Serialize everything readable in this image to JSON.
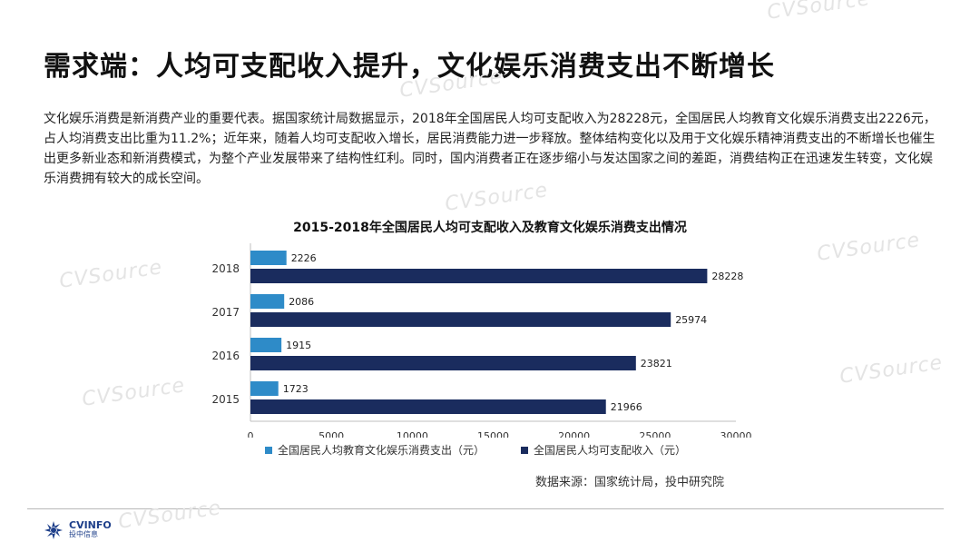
{
  "header": {
    "title": "需求端：人均可支配收入提升，文化娱乐消费支出不断增长"
  },
  "intro": {
    "text": "文化娱乐消费是新消费产业的重要代表。据国家统计局数据显示，2018年全国居民人均可支配收入为28228元，全国居民人均教育文化娱乐消费支出2226元，占人均消费支出比重为11.2%；近年来，随着人均可支配收入增长，居民消费能力进一步释放。整体结构变化以及用于文化娱乐精神消费支出的不断增长也催生出更多新业态和新消费模式，为整个产业发展带来了结构性红利。同时，国内消费者正在逐步缩小与发达国家之间的差距，消费结构正在迅速发生转变，文化娱乐消费拥有较大的成长空间。"
  },
  "chart_data": {
    "type": "bar",
    "orientation": "horizontal",
    "title": "2015-2018年全国居民人均可支配收入及教育文化娱乐消费支出情况",
    "categories": [
      "2018",
      "2017",
      "2016",
      "2015"
    ],
    "series": [
      {
        "name": "全国居民人均教育文化娱乐消费支出（元）",
        "color": "#2e8bc8",
        "values": [
          2226,
          2086,
          1915,
          1723
        ]
      },
      {
        "name": "全国居民人均可支配收入（元）",
        "color": "#1a2c5e",
        "values": [
          28228,
          25974,
          23821,
          21966
        ]
      }
    ],
    "xlim": [
      0,
      30000
    ],
    "xticks": [
      0,
      5000,
      10000,
      15000,
      20000,
      25000,
      30000
    ],
    "grid": false,
    "legend_position": "bottom"
  },
  "source": {
    "text": "数据来源：国家统计局，投中研究院"
  },
  "logo": {
    "main": "CVINFO",
    "sub": "投中信息"
  },
  "watermark": {
    "text": "CVSource"
  }
}
